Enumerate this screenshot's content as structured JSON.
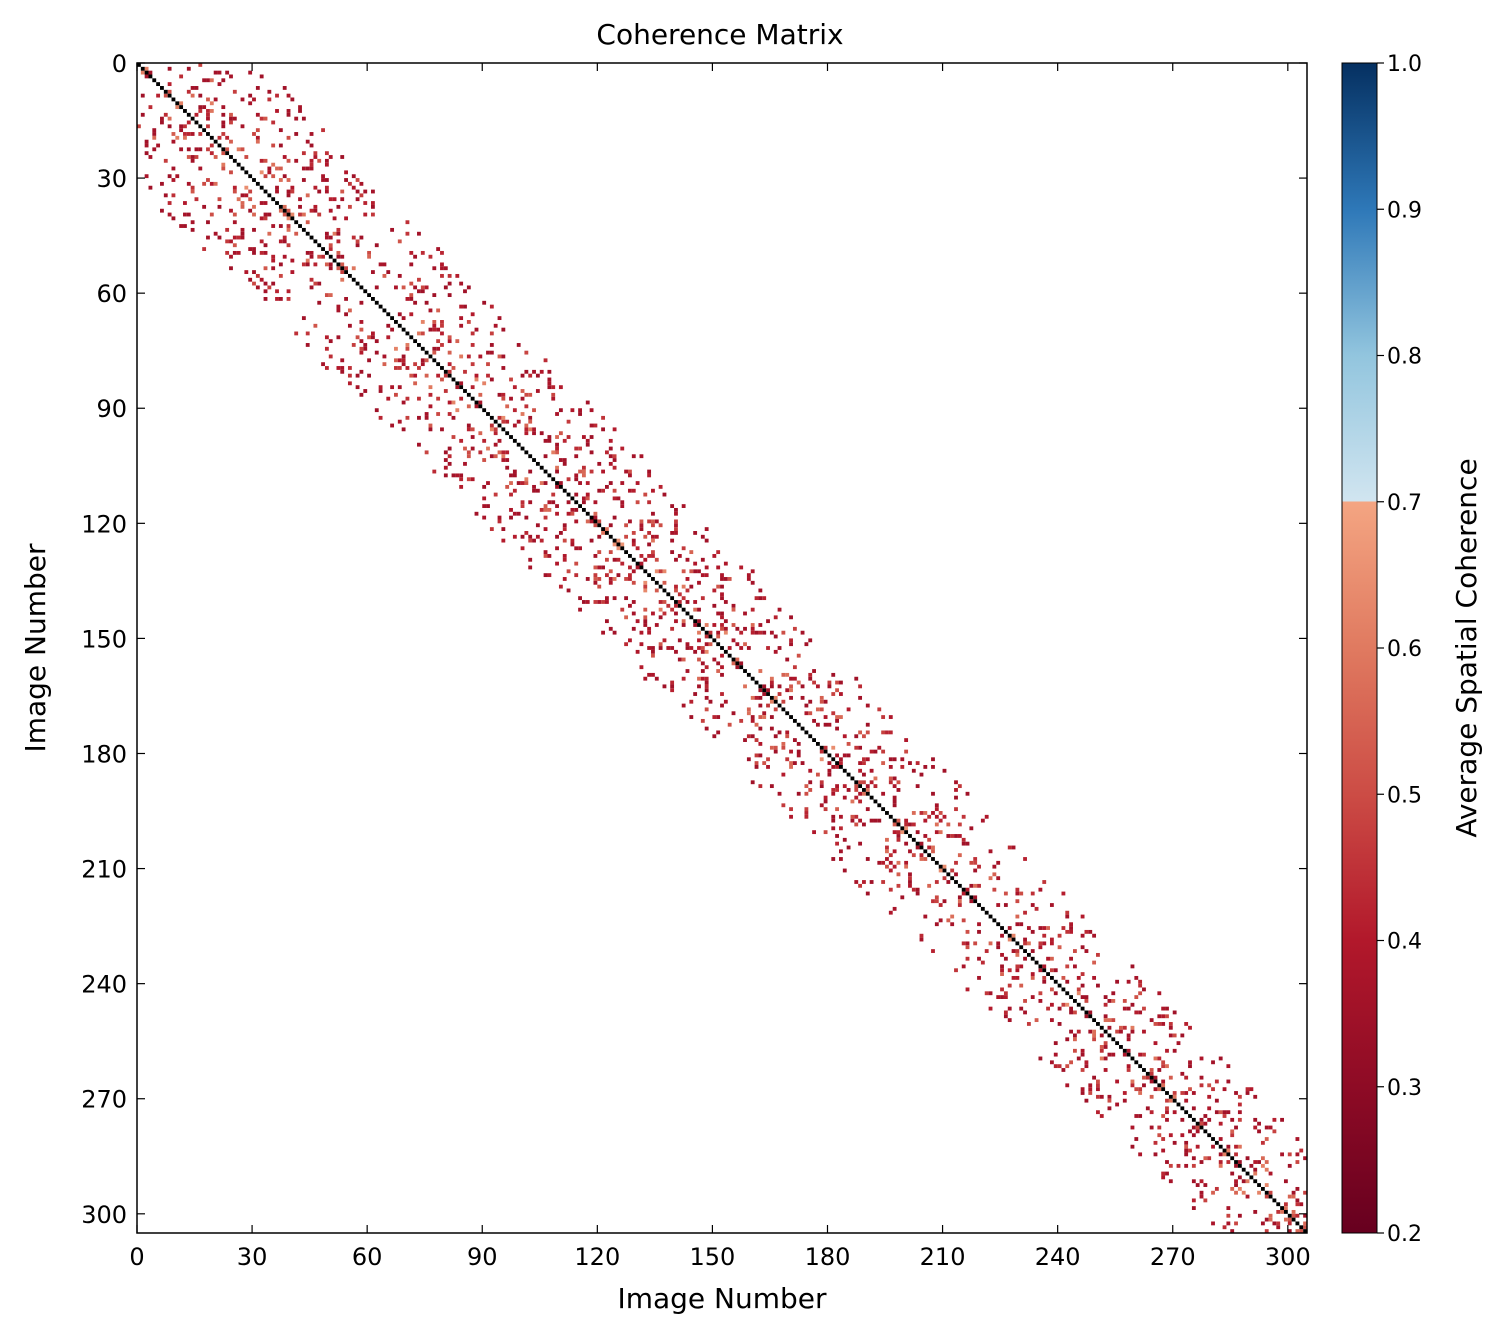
{
  "chart_data": {
    "type": "heatmap",
    "title": "Coherence Matrix",
    "xlabel": "Image Number",
    "ylabel": "Image Number",
    "colorbar_label": "Average Spatial Coherence",
    "n_images": 305,
    "xlim": [
      0,
      305
    ],
    "ylim": [
      305,
      0
    ],
    "xticks": [
      "0",
      "30",
      "60",
      "90",
      "120",
      "150",
      "180",
      "210",
      "240",
      "270",
      "300"
    ],
    "yticks": [
      "0",
      "30",
      "60",
      "90",
      "120",
      "150",
      "180",
      "210",
      "240",
      "270",
      "300"
    ],
    "colorbar_range": [
      0.2,
      1.0
    ],
    "colorbar_ticks": [
      "0.2",
      "0.3",
      "0.4",
      "0.5",
      "0.6",
      "0.7",
      "0.8",
      "0.9",
      "1.0"
    ],
    "colormap": "RdBu",
    "colormap_stops": [
      {
        "v": 0.2,
        "color": "#67001f"
      },
      {
        "v": 0.3,
        "color": "#8e0b25"
      },
      {
        "v": 0.4,
        "color": "#b2182b"
      },
      {
        "v": 0.5,
        "color": "#cc4c45"
      },
      {
        "v": 0.6,
        "color": "#e07a60"
      },
      {
        "v": 0.7,
        "color": "#f4a582"
      },
      {
        "v": 0.7001,
        "color": "#d1e5f0"
      },
      {
        "v": 0.8,
        "color": "#92c5de"
      },
      {
        "v": 0.9,
        "color": "#2e78b8"
      },
      {
        "v": 1.0,
        "color": "#053061"
      }
    ],
    "diagonal_value": 1.0,
    "diagonal_color": "#000000",
    "band_halfwidth_start": 32,
    "band_halfwidth_end": 22,
    "band_density": 0.12,
    "value_min": 0.35,
    "value_max": 0.68,
    "grid": false
  }
}
